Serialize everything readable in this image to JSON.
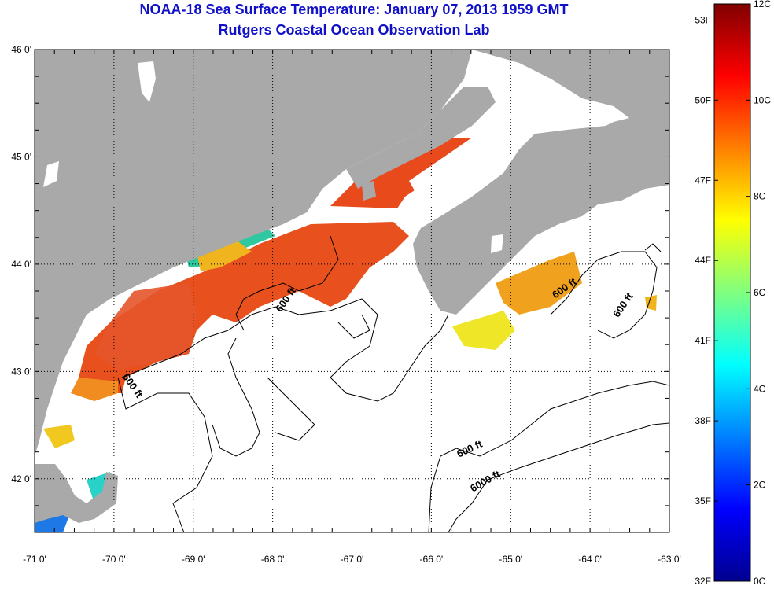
{
  "header": {
    "title": "NOAA-18 Sea Surface Temperature:  January 07, 2013 1959 GMT",
    "subtitle": "Rutgers Coastal Ocean Observation Lab"
  },
  "map": {
    "lat_labels": [
      "46 0'",
      "45 0'",
      "44 0'",
      "43 0'",
      "42 0'"
    ],
    "lon_labels": [
      "-71 0'",
      "-70 0'",
      "-69 0'",
      "-68 0'",
      "-67 0'",
      "-66 0'",
      "-65 0'",
      "-64 0'",
      "-63 0'"
    ],
    "lat_range": [
      41.5,
      46.0
    ],
    "lon_range": [
      -71.0,
      -63.0
    ],
    "contour_labels": [
      {
        "text": "600 ft",
        "lon": -69.8,
        "lat": 42.85,
        "angle": 55
      },
      {
        "text": "600 ft",
        "lon": -67.8,
        "lat": 43.65,
        "angle": -55
      },
      {
        "text": "600 ft",
        "lon": -64.3,
        "lat": 43.75,
        "angle": -35
      },
      {
        "text": "600 ft",
        "lon": -63.55,
        "lat": 43.6,
        "angle": -55
      },
      {
        "text": "600 ft",
        "lon": -65.5,
        "lat": 42.25,
        "angle": -25
      },
      {
        "text": "6000 ft",
        "lon": -65.3,
        "lat": 41.95,
        "angle": -30
      }
    ],
    "colors": {
      "land": "#a9a9a9",
      "ocean": "#ffffff",
      "grid": "#000000"
    }
  },
  "colorbar": {
    "fahrenheit_labels": [
      "53F",
      "50F",
      "47F",
      "44F",
      "41F",
      "38F",
      "35F",
      "32F"
    ],
    "celsius_labels": [
      "12C",
      "10C",
      "8C",
      "6C",
      "4C",
      "2C",
      "0C"
    ],
    "range_c": [
      0,
      12
    ],
    "colormap": "jet"
  }
}
